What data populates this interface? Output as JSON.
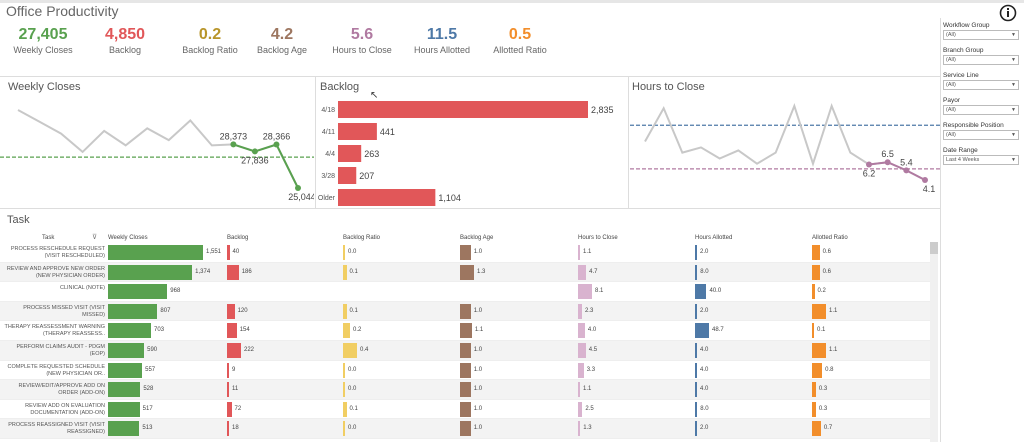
{
  "title": "Office Productivity",
  "kpis": [
    {
      "value": "27,405",
      "label": "Weekly Closes",
      "color": "#59a14f"
    },
    {
      "value": "4,850",
      "label": "Backlog",
      "color": "#e15759"
    },
    {
      "value": "0.2",
      "label": "Backlog Ratio",
      "color": "#b8952a"
    },
    {
      "value": "4.2",
      "label": "Backlog Age",
      "color": "#9d7660"
    },
    {
      "value": "5.6",
      "label": "Hours to Close",
      "color": "#b07aa1"
    },
    {
      "value": "11.5",
      "label": "Hours Allotted",
      "color": "#4e79a7"
    },
    {
      "value": "0.5",
      "label": "Allotted Ratio",
      "color": "#f28e2b"
    }
  ],
  "weekly_closes": {
    "type": "line",
    "title": "Weekly Closes",
    "values": [
      31000,
      30100,
      29200,
      27800,
      29400,
      28300,
      29600,
      28700,
      30200,
      28300,
      28373,
      27836,
      28366,
      25044
    ],
    "value_labels": [
      null,
      null,
      null,
      null,
      null,
      null,
      null,
      null,
      null,
      null,
      "28,373",
      "27,836",
      "28,366",
      "25,044"
    ],
    "color": "#c8c8c8",
    "highlight_color": "#59a14f",
    "reference_lines": [
      {
        "value": 27400,
        "color": "#59a14f"
      }
    ]
  },
  "backlog": {
    "type": "bar",
    "title": "Backlog",
    "categories": [
      "4/18",
      "4/11",
      "4/4",
      "3/28",
      "Older"
    ],
    "values": [
      2835,
      441,
      263,
      207,
      1104
    ],
    "value_labels": [
      "2,835",
      "441",
      "263",
      "207",
      "1,104"
    ],
    "color": "#e15759"
  },
  "hours_to_close": {
    "type": "line",
    "title": "Hours to Close",
    "values": [
      9.3,
      13.8,
      7.8,
      8.5,
      7.0,
      8.1,
      6.3,
      7.8,
      14.1,
      6.3,
      14.1,
      7.8,
      6.2,
      6.5,
      5.4,
      4.1
    ],
    "value_labels": [
      null,
      null,
      null,
      null,
      null,
      null,
      null,
      null,
      null,
      null,
      null,
      null,
      "6.2",
      "6.5",
      "5.4",
      "4.1"
    ],
    "color": "#c8c8c8",
    "highlight_color": "#b07aa1",
    "reference_lines": [
      {
        "value": 11.5,
        "color": "#4e79a7"
      },
      {
        "value": 5.6,
        "color": "#b07aa1"
      }
    ]
  },
  "table": {
    "title": "Task",
    "columns": [
      "Task",
      "Weekly Closes",
      "Backlog",
      "Backlog Ratio",
      "Backlog Age",
      "Hours to Close",
      "Hours Allotted",
      "Allotted Ratio"
    ],
    "column_colors": [
      "#59a14f",
      "#e15759",
      "#f1ce63",
      "#9d7660",
      "#d9b3cf",
      "#4e79a7",
      "#f28e2b"
    ],
    "rows": [
      {
        "task": "PROCESS RESCHEDULE REQUEST (VISIT RESCHEDULED)",
        "values": [
          1551,
          40,
          0.0,
          1.0,
          1.1,
          2.0,
          0.6
        ],
        "value_labels": [
          "1,551",
          "40",
          "0.0",
          "1.0",
          "1.1",
          "2.0",
          "0.6"
        ]
      },
      {
        "task": "REVIEW AND APPROVE NEW ORDER (NEW PHYSICIAN ORDER)",
        "values": [
          1374,
          186,
          0.1,
          1.3,
          4.7,
          8.0,
          0.6
        ],
        "value_labels": [
          "1,374",
          "186",
          "0.1",
          "1.3",
          "4.7",
          "8.0",
          "0.6"
        ]
      },
      {
        "task": "CLINICAL (NOTE)",
        "values": [
          968,
          null,
          null,
          null,
          8.1,
          40.0,
          0.2
        ],
        "value_labels": [
          "968",
          null,
          null,
          null,
          "8.1",
          "40.0",
          "0.2"
        ]
      },
      {
        "task": "PROCESS MISSED VISIT (VISIT MISSED)",
        "values": [
          807,
          120,
          0.1,
          1.0,
          2.3,
          2.0,
          1.1
        ],
        "value_labels": [
          "807",
          "120",
          "0.1",
          "1.0",
          "2.3",
          "2.0",
          "1.1"
        ]
      },
      {
        "task": "THERAPY REASSESSMENT WARNING (THERAPY REASSESS..",
        "values": [
          703,
          154,
          0.2,
          1.1,
          4.0,
          48.7,
          0.1
        ],
        "value_labels": [
          "703",
          "154",
          "0.2",
          "1.1",
          "4.0",
          "48.7",
          "0.1"
        ]
      },
      {
        "task": "PERFORM CLAIMS AUDIT - PDGM (EOP)",
        "values": [
          590,
          222,
          0.4,
          1.0,
          4.5,
          4.0,
          1.1
        ],
        "value_labels": [
          "590",
          "222",
          "0.4",
          "1.0",
          "4.5",
          "4.0",
          "1.1"
        ]
      },
      {
        "task": "COMPLETE REQUESTED SCHEDULE (NEW PHYSICIAN OR..",
        "values": [
          557,
          9,
          0.0,
          1.0,
          3.3,
          4.0,
          0.8
        ],
        "value_labels": [
          "557",
          "9",
          "0.0",
          "1.0",
          "3.3",
          "4.0",
          "0.8"
        ]
      },
      {
        "task": "REVIEW/EDIT/APPROVE ADD ON ORDER (ADD-ON)",
        "values": [
          528,
          11,
          0.0,
          1.0,
          1.1,
          4.0,
          0.3
        ],
        "value_labels": [
          "528",
          "11",
          "0.0",
          "1.0",
          "1.1",
          "4.0",
          "0.3"
        ]
      },
      {
        "task": "REVIEW ADD ON EVALUATION DOCUMENTATION (ADD-ON)",
        "values": [
          517,
          72,
          0.1,
          1.0,
          2.5,
          8.0,
          0.3
        ],
        "value_labels": [
          "517",
          "72",
          "0.1",
          "1.0",
          "2.5",
          "8.0",
          "0.3"
        ]
      },
      {
        "task": "PROCESS REASSIGNED VISIT (VISIT REASSIGNED)",
        "values": [
          513,
          18,
          0.0,
          1.0,
          1.3,
          2.0,
          0.7
        ],
        "value_labels": [
          "513",
          "18",
          "0.0",
          "1.0",
          "1.3",
          "2.0",
          "0.7"
        ]
      }
    ]
  },
  "filters": [
    {
      "label": "Workflow Group",
      "value": "(All)"
    },
    {
      "label": "Branch Group",
      "value": "(All)"
    },
    {
      "label": "Service Line",
      "value": "(All)"
    },
    {
      "label": "Payor",
      "value": "(All)"
    },
    {
      "label": "Responsible Position",
      "value": "(All)"
    },
    {
      "label": "Date Range",
      "value": "Last 4 Weeks"
    }
  ]
}
